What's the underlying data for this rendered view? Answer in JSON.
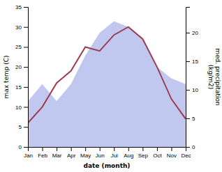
{
  "chart_data": {
    "type": "line",
    "categories": [
      "Jan",
      "Feb",
      "Mar",
      "Apr",
      "May",
      "Jun",
      "Jul",
      "Aug",
      "Sep",
      "Oct",
      "Nov",
      "Dec"
    ],
    "xlabel": "date (month)",
    "ylabel": "max temp (C)",
    "y2label": "med. precipitation\n(kg/m2)",
    "ylim": [
      0,
      35
    ],
    "yticks": [
      0,
      5,
      10,
      15,
      20,
      25,
      30,
      35
    ],
    "y2lim": [
      0,
      24.5
    ],
    "y2ticks": [
      0,
      5,
      10,
      15,
      20
    ],
    "grid": false,
    "series": [
      {
        "type": "area",
        "axis": "y2",
        "color": "#c0c8f0",
        "values": [
          8,
          11,
          8,
          11,
          16,
          20,
          22,
          21,
          19,
          14,
          12,
          11
        ]
      },
      {
        "type": "line",
        "color": "#9e3d4f",
        "values": [
          6,
          10,
          16,
          19,
          25,
          24,
          28,
          30,
          27,
          20,
          12,
          7
        ]
      }
    ]
  }
}
